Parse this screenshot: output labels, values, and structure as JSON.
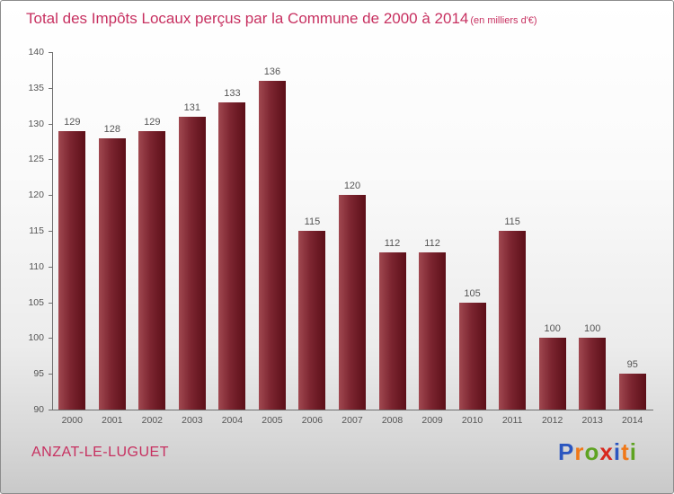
{
  "header": {
    "title": "Total des Impôts Locaux perçus par la Commune de 2000 à 2014",
    "unit": "(en milliers d'€)"
  },
  "footer": {
    "commune": "ANZAT-LE-LUGUET"
  },
  "logo": {
    "name": "Proxiti",
    "letters": [
      {
        "char": "P",
        "color": "#2b56c0"
      },
      {
        "char": "r",
        "color": "#f07818"
      },
      {
        "char": "o",
        "color": "#5ea321"
      },
      {
        "char": "x",
        "color": "#d8281e"
      },
      {
        "char": "i",
        "color": "#2b56c0"
      },
      {
        "char": "t",
        "color": "#f07818"
      },
      {
        "char": "i",
        "color": "#5ea321"
      }
    ]
  },
  "colors": {
    "title": "#c73060",
    "bar_light": "#a04850",
    "bar_mid": "#7c2530",
    "bar_dark": "#5c0f18",
    "axis": "#6e6e6e",
    "tick_text": "#555555"
  },
  "chart_data": {
    "type": "bar",
    "title": "Total des Impôts Locaux perçus par la Commune de 2000 à 2014 (en milliers d'€)",
    "categories": [
      "2000",
      "2001",
      "2002",
      "2003",
      "2004",
      "2005",
      "2006",
      "2007",
      "2008",
      "2009",
      "2010",
      "2011",
      "2012",
      "2013",
      "2014"
    ],
    "values": [
      129,
      128,
      129,
      131,
      133,
      136,
      115,
      120,
      112,
      112,
      105,
      115,
      100,
      100,
      95
    ],
    "xlabel": "",
    "ylabel": "",
    "ylim": [
      90,
      140
    ],
    "yticks": [
      90,
      95,
      100,
      105,
      110,
      115,
      120,
      125,
      130,
      135,
      140
    ],
    "grid": false,
    "legend": false,
    "value_labels": true
  }
}
